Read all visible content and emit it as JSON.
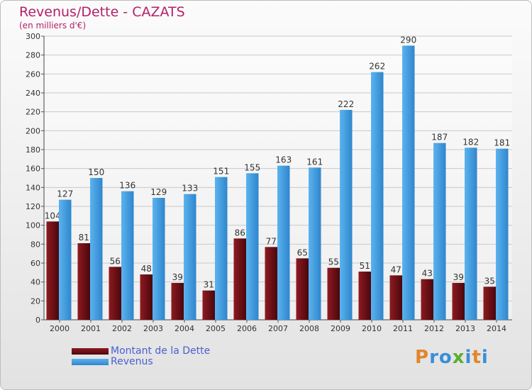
{
  "title": "Revenus/Dette - CAZATS",
  "subtitle": "(en milliers d'€)",
  "logo": "Proxiti",
  "colors": {
    "dette": "#7a1016",
    "revenus": "#3f9fe3",
    "title": "#b4206a",
    "legend_text": "#4a5fd0",
    "logo_letters": [
      "#e2862c",
      "#3a8fd6",
      "#3a8fd6",
      "#5cae2f",
      "#3a8fd6",
      "#e2862c",
      "#3a8fd6"
    ]
  },
  "chart_data": {
    "type": "bar",
    "title": "Revenus/Dette - CAZATS",
    "ylabel": "(en milliers d'€)",
    "xlabel": "",
    "categories": [
      "2000",
      "2001",
      "2002",
      "2003",
      "2004",
      "2005",
      "2006",
      "2007",
      "2008",
      "2009",
      "2010",
      "2011",
      "2012",
      "2013",
      "2014"
    ],
    "series": [
      {
        "name": "Montant de la Dette",
        "values": [
          104,
          81,
          56,
          48,
          39,
          31,
          86,
          77,
          65,
          55,
          51,
          47,
          43,
          39,
          35
        ]
      },
      {
        "name": "Revenus",
        "values": [
          127,
          150,
          136,
          129,
          133,
          151,
          155,
          163,
          161,
          222,
          262,
          290,
          187,
          182,
          181
        ]
      }
    ],
    "ylim": [
      0,
      300
    ],
    "yticks": [
      0,
      20,
      40,
      60,
      80,
      100,
      120,
      140,
      160,
      180,
      200,
      220,
      240,
      260,
      280,
      300
    ],
    "grid": true,
    "legend": "bottom-left"
  }
}
